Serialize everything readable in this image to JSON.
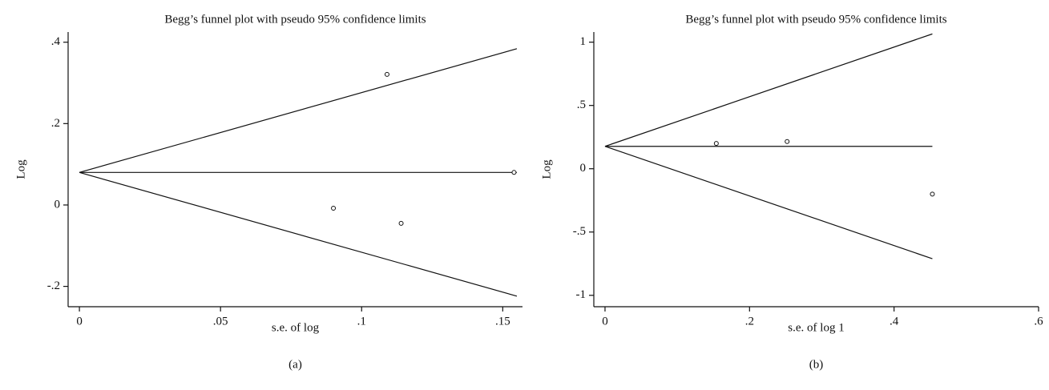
{
  "chart_data": [
    {
      "type": "scatter",
      "title": "Begg’s funnel plot with pseudo 95% confidence limits",
      "x_label": "s.e. of log",
      "y_label": "Log",
      "panel_label": "(a)",
      "x": [
        0.109,
        0.154,
        0.09,
        0.114
      ],
      "values": [
        0.321,
        0.08,
        -0.008,
        -0.045
      ],
      "lines": [
        {
          "x": [
            0,
            0.155
          ],
          "values": [
            0.08,
            0.08
          ]
        },
        {
          "x": [
            0,
            0.155
          ],
          "values": [
            0.08,
            0.384
          ]
        },
        {
          "x": [
            0,
            0.155
          ],
          "values": [
            0.08,
            -0.224
          ]
        }
      ],
      "xlim": [
        -0.004,
        0.157
      ],
      "ylim": [
        -0.25,
        0.425
      ],
      "xticks": [
        0,
        {
          "value": 0.05,
          "label": ".05"
        },
        {
          "value": 0.1,
          "label": ".1"
        },
        {
          "value": 0.15,
          "label": ".15"
        }
      ],
      "yticks": [
        {
          "value": -0.2,
          "label": "-.2"
        },
        0,
        {
          "value": 0.2,
          "label": ".2"
        },
        {
          "value": 0.4,
          "label": ".4"
        }
      ]
    },
    {
      "type": "scatter",
      "title": "Begg’s funnel plot with pseudo 95% confidence limits",
      "x_label": "s.e. of log 1",
      "y_label": "Log",
      "panel_label": "(b)",
      "x": [
        0.154,
        0.252,
        0.453
      ],
      "values": [
        0.2,
        0.215,
        -0.2
      ],
      "lines": [
        {
          "x": [
            0,
            0.453
          ],
          "values": [
            0.177,
            0.177
          ]
        },
        {
          "x": [
            0,
            0.453
          ],
          "values": [
            0.177,
            1.065
          ]
        },
        {
          "x": [
            0,
            0.453
          ],
          "values": [
            0.177,
            -0.711
          ]
        }
      ],
      "xlim": [
        -0.0155,
        0.6
      ],
      "ylim": [
        -1.09,
        1.08
      ],
      "xticks": [
        0,
        {
          "value": 0.2,
          "label": ".2"
        },
        {
          "value": 0.4,
          "label": ".4"
        },
        {
          "value": 0.6,
          "label": ".6"
        }
      ],
      "yticks": [
        -1,
        {
          "value": -0.5,
          "label": "-.5"
        },
        0,
        {
          "value": 0.5,
          "label": ".5"
        },
        1
      ]
    }
  ]
}
